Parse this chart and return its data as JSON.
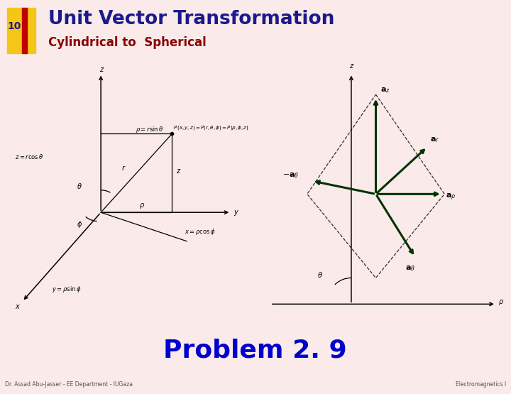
{
  "title": "Unit Vector Transformation",
  "subtitle": "Cylindrical to  Spherical",
  "slide_number": "10",
  "problem_text": "Problem 2. 9",
  "footer_left": "Dr. Assad Abu-Jasser - EE Department - IUGaza",
  "footer_right": "Electromagnetics I",
  "bg_color": "#faeaea",
  "title_color": "#1a1a8c",
  "subtitle_color": "#8b0000",
  "header_bar_color": "#8b0000",
  "slide_num_box_yellow": "#f5c518",
  "slide_num_box_red": "#c00000",
  "main_panel_bg": "#ffffff",
  "main_panel_border": "#8b0000",
  "problem_bg": "#ffffcc",
  "problem_color": "#0000cc",
  "footer_color": "#555555",
  "vector_color": "#003300",
  "diagram_line_color": "#000000"
}
